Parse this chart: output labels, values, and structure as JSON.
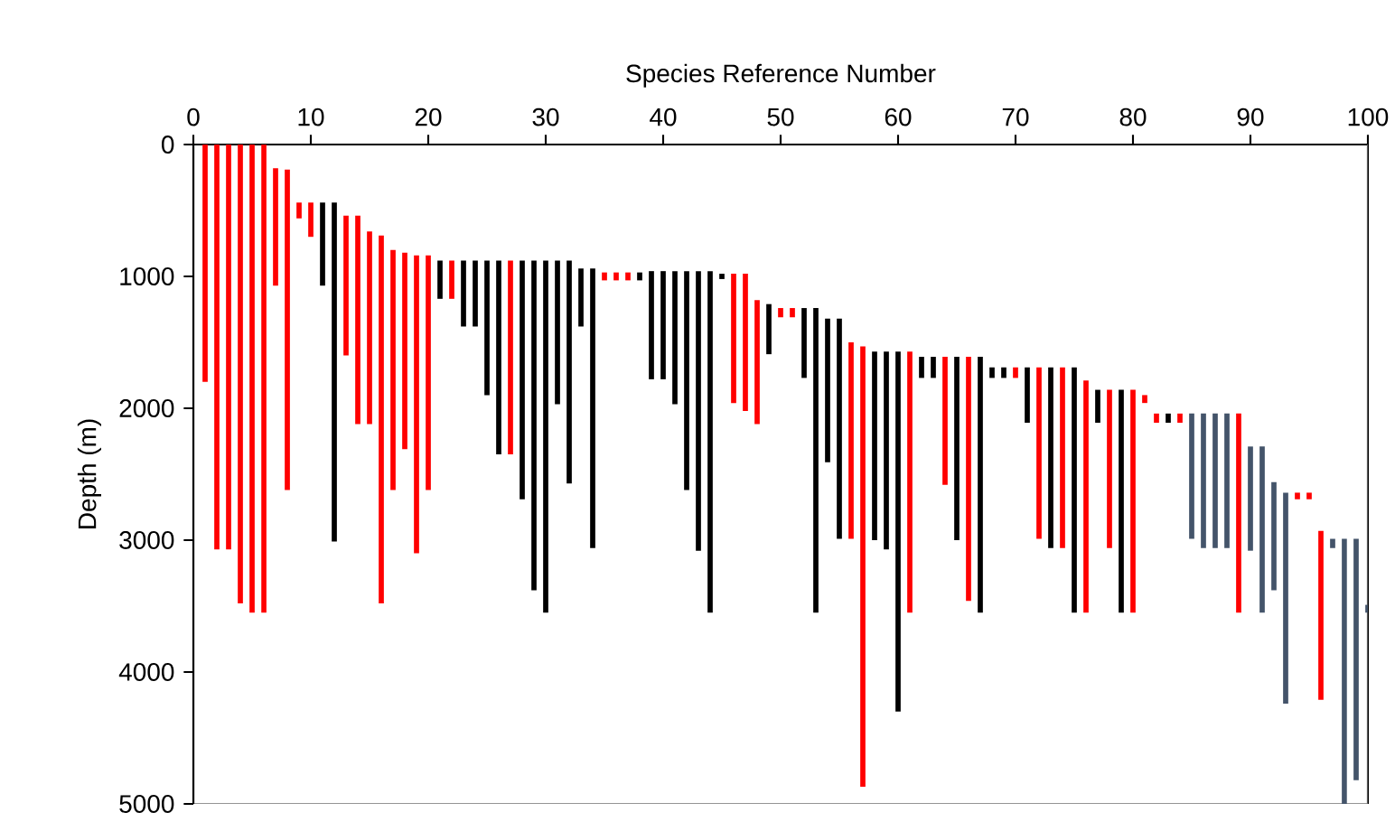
{
  "chart_data": {
    "type": "bar",
    "xlabel": "Species Reference Number",
    "ylabel": "Depth (m)",
    "x": [
      1,
      2,
      3,
      4,
      5,
      6,
      7,
      8,
      9,
      10,
      11,
      12,
      13,
      14,
      15,
      16,
      17,
      18,
      19,
      20,
      21,
      22,
      23,
      24,
      25,
      26,
      27,
      28,
      29,
      30,
      31,
      32,
      33,
      34,
      35,
      36,
      37,
      38,
      39,
      40,
      41,
      42,
      43,
      44,
      45,
      46,
      47,
      48,
      49,
      50,
      51,
      52,
      53,
      54,
      55,
      56,
      57,
      58,
      59,
      60,
      61,
      62,
      63,
      64,
      65,
      66,
      67,
      68,
      69,
      70,
      71,
      72,
      73,
      74,
      75,
      76,
      77,
      78,
      79,
      80,
      81,
      82,
      83,
      84,
      85,
      86,
      87,
      88,
      89,
      90,
      91,
      92,
      93,
      94,
      95,
      96,
      97,
      98,
      99,
      100
    ],
    "base": [
      0,
      0,
      0,
      0,
      0,
      0,
      180,
      190,
      440,
      440,
      440,
      440,
      540,
      540,
      660,
      690,
      800,
      820,
      840,
      840,
      880,
      880,
      880,
      880,
      880,
      880,
      880,
      880,
      880,
      880,
      880,
      880,
      940,
      940,
      970,
      970,
      970,
      970,
      960,
      960,
      960,
      960,
      960,
      960,
      980,
      980,
      980,
      1180,
      1210,
      1240,
      1240,
      1240,
      1240,
      1320,
      1320,
      1500,
      1530,
      1570,
      1570,
      1570,
      1570,
      1610,
      1610,
      1610,
      1610,
      1610,
      1610,
      1690,
      1690,
      1690,
      1690,
      1690,
      1690,
      1690,
      1690,
      1790,
      1860,
      1860,
      1860,
      1860,
      1900,
      2040,
      2040,
      2040,
      2040,
      2040,
      2040,
      2040,
      2040,
      2290,
      2290,
      2560,
      2640,
      2640,
      2640,
      2930,
      2990,
      2990,
      2990,
      3490
    ],
    "values": [
      1800,
      3070,
      3070,
      3480,
      3550,
      3550,
      890,
      2430,
      120,
      260,
      630,
      2570,
      1060,
      1580,
      1460,
      2790,
      1820,
      1490,
      2260,
      1780,
      290,
      290,
      500,
      500,
      1020,
      1470,
      1470,
      1810,
      2500,
      2670,
      1090,
      1690,
      440,
      2120,
      60,
      60,
      60,
      60,
      820,
      820,
      1010,
      1660,
      2120,
      2590,
      40,
      980,
      1040,
      940,
      380,
      70,
      70,
      530,
      2310,
      1090,
      1670,
      1490,
      3340,
      1430,
      1500,
      2730,
      1980,
      160,
      160,
      970,
      1390,
      1850,
      1940,
      80,
      80,
      80,
      420,
      1300,
      1370,
      1370,
      1860,
      1760,
      250,
      1200,
      1690,
      1690,
      60,
      70,
      70,
      70,
      950,
      1020,
      1020,
      1020,
      1510,
      790,
      1260,
      820,
      1600,
      50,
      50,
      1280,
      70,
      2010,
      1830,
      60
    ],
    "colors": [
      "#ff0000",
      "#ff0000",
      "#ff0000",
      "#ff0000",
      "#ff0000",
      "#ff0000",
      "#ff0000",
      "#ff0000",
      "#ff0000",
      "#ff0000",
      "#000000",
      "#000000",
      "#ff0000",
      "#ff0000",
      "#ff0000",
      "#ff0000",
      "#ff0000",
      "#ff0000",
      "#ff0000",
      "#ff0000",
      "#000000",
      "#ff0000",
      "#000000",
      "#000000",
      "#000000",
      "#000000",
      "#ff0000",
      "#000000",
      "#000000",
      "#000000",
      "#000000",
      "#000000",
      "#000000",
      "#000000",
      "#ff0000",
      "#ff0000",
      "#ff0000",
      "#000000",
      "#000000",
      "#000000",
      "#000000",
      "#000000",
      "#000000",
      "#000000",
      "#000000",
      "#ff0000",
      "#ff0000",
      "#ff0000",
      "#000000",
      "#ff0000",
      "#ff0000",
      "#000000",
      "#000000",
      "#000000",
      "#000000",
      "#ff0000",
      "#ff0000",
      "#000000",
      "#000000",
      "#000000",
      "#ff0000",
      "#000000",
      "#000000",
      "#ff0000",
      "#000000",
      "#ff0000",
      "#000000",
      "#000000",
      "#000000",
      "#ff0000",
      "#000000",
      "#ff0000",
      "#000000",
      "#ff0000",
      "#000000",
      "#ff0000",
      "#000000",
      "#ff0000",
      "#000000",
      "#ff0000",
      "#ff0000",
      "#ff0000",
      "#000000",
      "#ff0000",
      "#44546a",
      "#44546a",
      "#44546a",
      "#44546a",
      "#ff0000",
      "#44546a",
      "#44546a",
      "#44546a",
      "#44546a",
      "#ff0000",
      "#ff0000",
      "#ff0000",
      "#44546a",
      "#44546a",
      "#44546a",
      "#44546a"
    ],
    "xlim": [
      0,
      100
    ],
    "xticks": [
      0,
      10,
      20,
      30,
      40,
      50,
      60,
      70,
      80,
      90,
      100
    ],
    "ylim": [
      5000,
      0
    ],
    "yticks": [
      0,
      1000,
      2000,
      3000,
      4000,
      5000
    ]
  }
}
